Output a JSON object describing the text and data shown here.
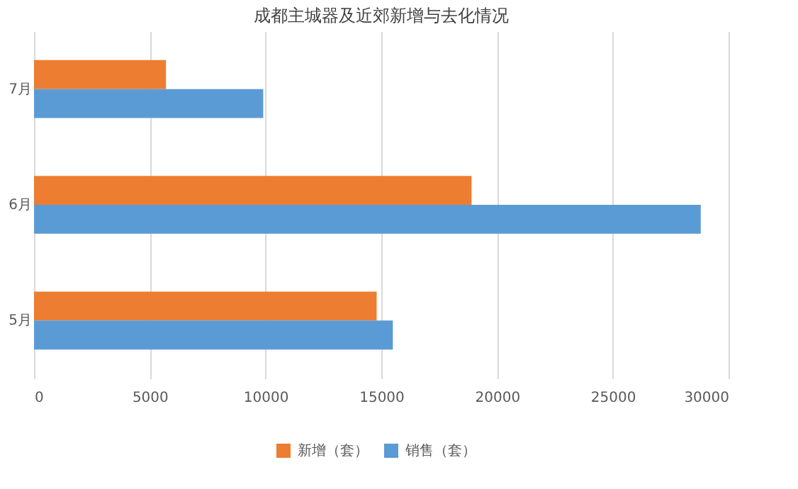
{
  "chart_data": {
    "type": "bar",
    "orientation": "horizontal",
    "title": "成都主城器及近郊新增与去化情况",
    "categories": [
      "7月",
      "6月",
      "5月"
    ],
    "series": [
      {
        "name": "新增（套）",
        "color": "#ed7d31",
        "values": [
          5700,
          18900,
          14800
        ]
      },
      {
        "name": "销售（套）",
        "color": "#5b9bd5",
        "values": [
          9900,
          28800,
          15500
        ]
      }
    ],
    "xlim": [
      0,
      30000
    ],
    "xticks": [
      0,
      5000,
      10000,
      15000,
      20000,
      25000,
      30000
    ],
    "grid": "x",
    "legend": "bottom"
  }
}
